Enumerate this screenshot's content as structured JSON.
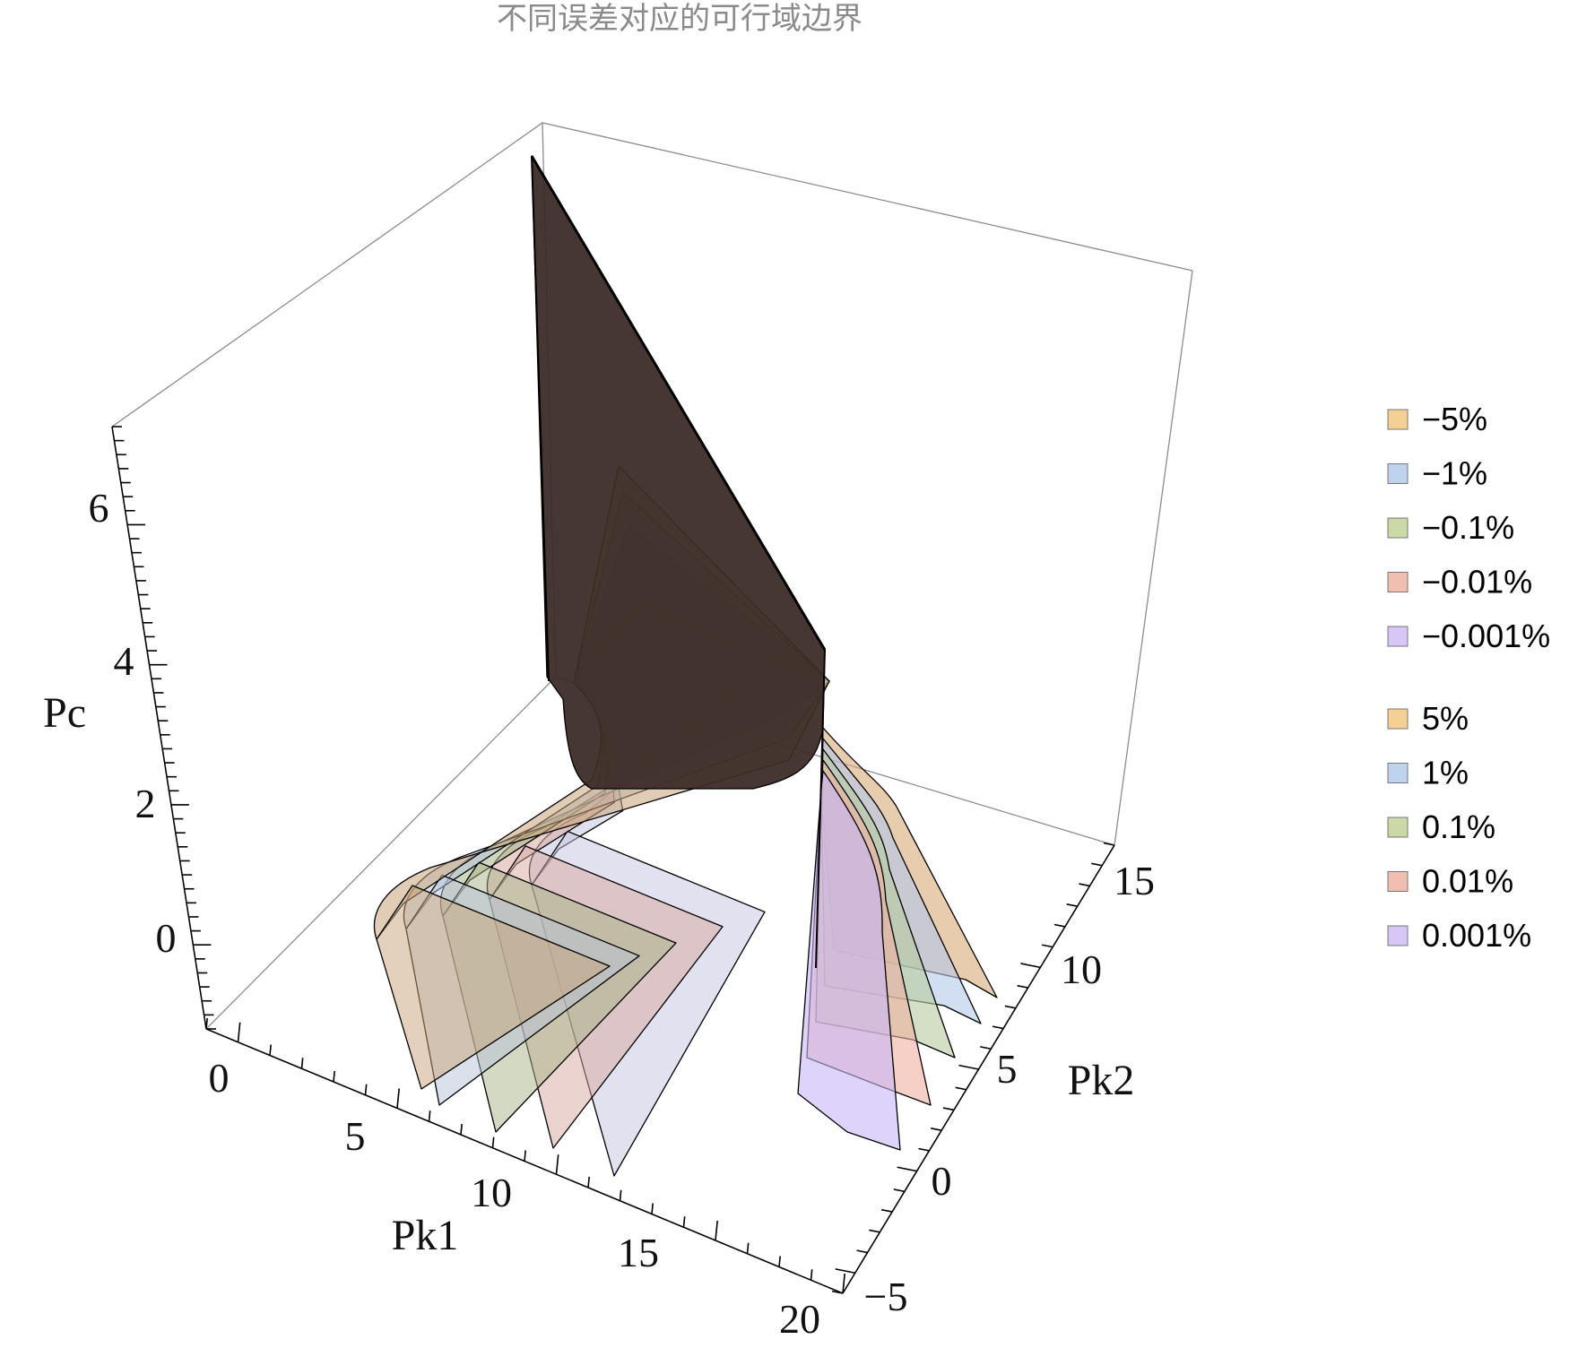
{
  "title": "不同误差对应的可行域边界",
  "chart_data": {
    "type": "surface3d",
    "title": "不同误差对应的可行域边界",
    "axes": {
      "x": {
        "label": "Pk1",
        "range": [
          -1,
          20
        ],
        "ticks": [
          "0",
          "5",
          "10",
          "15",
          "20"
        ]
      },
      "y": {
        "label": "Pk2",
        "range": [
          -6,
          16
        ],
        "ticks": [
          "−5",
          "0",
          "5",
          "10",
          "15"
        ]
      },
      "z": {
        "label": "Pc",
        "range": [
          -1.5,
          7
        ],
        "ticks": [
          "0",
          "2",
          "4",
          "6"
        ]
      }
    },
    "legend": {
      "position": "right",
      "groups": [
        [
          {
            "label": "−5%",
            "color": "#f0c070"
          },
          {
            "label": "−1%",
            "color": "#a8c4e8"
          },
          {
            "label": "−0.1%",
            "color": "#b8cc88"
          },
          {
            "label": "−0.01%",
            "color": "#eea898"
          },
          {
            "label": "−0.001%",
            "color": "#c8b4f4"
          }
        ],
        [
          {
            "label": "5%",
            "color": "#f0c070"
          },
          {
            "label": "1%",
            "color": "#a8c4e8"
          },
          {
            "label": "0.1%",
            "color": "#b8cc88"
          },
          {
            "label": "0.01%",
            "color": "#eea898"
          },
          {
            "label": "0.001%",
            "color": "#c8b4f4"
          }
        ]
      ]
    },
    "series": [
      {
        "name": "−5%",
        "error_percent": -5,
        "color": "#c8a478"
      },
      {
        "name": "−1%",
        "error_percent": -1,
        "color": "#b8c4d8"
      },
      {
        "name": "−0.1%",
        "error_percent": -0.1,
        "color": "#a8b488"
      },
      {
        "name": "−0.01%",
        "error_percent": -0.01,
        "color": "#d8a8a0"
      },
      {
        "name": "−0.001%",
        "error_percent": -0.001,
        "color": "#c4c4e0"
      },
      {
        "name": "5%",
        "error_percent": 5,
        "color": "#d8aa78"
      },
      {
        "name": "1%",
        "error_percent": 1,
        "color": "#b4c8e8"
      },
      {
        "name": "0.1%",
        "error_percent": 0.1,
        "color": "#b8cca0"
      },
      {
        "name": "0.01%",
        "error_percent": 0.01,
        "color": "#f0b0a0"
      },
      {
        "name": "0.001%",
        "error_percent": 0.001,
        "color": "#c8b8f8"
      }
    ],
    "shared_ridge_color": "#3c2c28"
  }
}
